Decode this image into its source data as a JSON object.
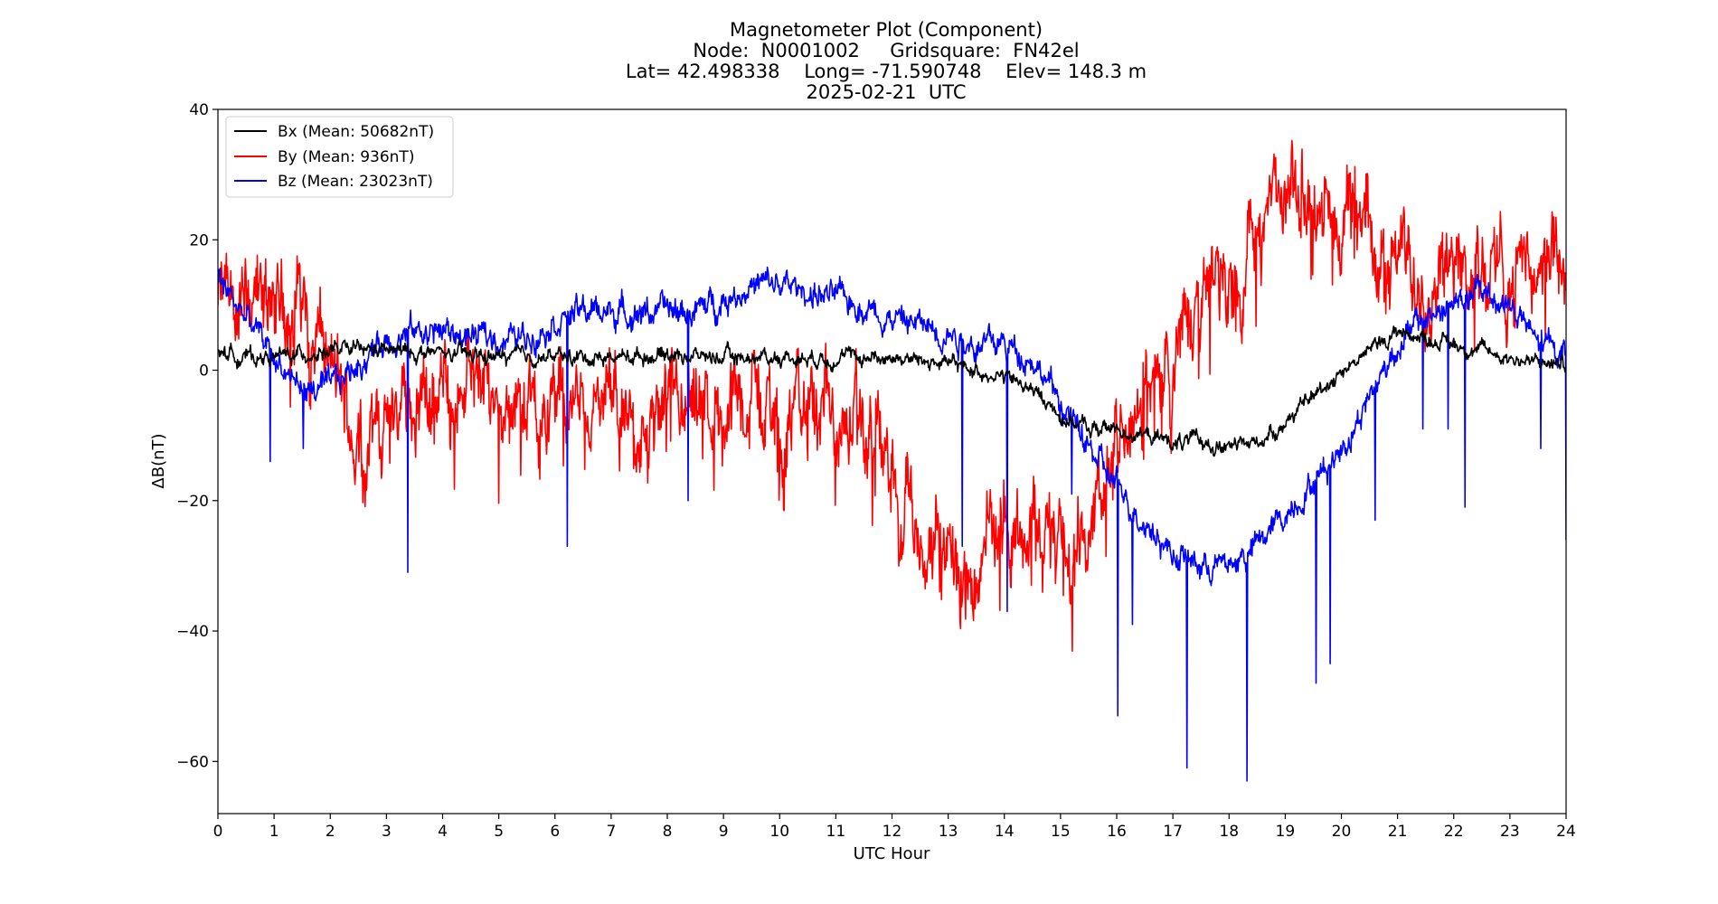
{
  "chart_data": {
    "type": "line",
    "title_lines": [
      "Magnetometer Plot (Component)",
      "Node:  N0001002     Gridsquare:  FN42el",
      "Lat= 42.498338    Long= -71.590748    Elev= 148.3 m",
      "2025-02-21  UTC"
    ],
    "xlabel": "UTC Hour",
    "ylabel": "ΔB(nT)",
    "xlim": [
      0,
      24
    ],
    "ylim": [
      -68,
      40
    ],
    "xticks": [
      0,
      1,
      2,
      3,
      4,
      5,
      6,
      7,
      8,
      9,
      10,
      11,
      12,
      13,
      14,
      15,
      16,
      17,
      18,
      19,
      20,
      21,
      22,
      23,
      24
    ],
    "yticks": [
      40,
      20,
      0,
      -20,
      -40,
      -60
    ],
    "ytick_labels": [
      "40",
      "20",
      "0",
      "−20",
      "−40",
      "−60"
    ],
    "grid": false,
    "legend_position": "upper-left",
    "series": [
      {
        "name": "Bx (Mean: 50682nT)",
        "color": "#000000",
        "amplitude": 1.2,
        "x": [
          0,
          0.5,
          1,
          1.5,
          2,
          3,
          4,
          5,
          6,
          7,
          8,
          9,
          10,
          11,
          12,
          12.5,
          13,
          13.5,
          14,
          14.5,
          15,
          15.5,
          16,
          16.5,
          17,
          17.5,
          18,
          18.5,
          19,
          19.5,
          20,
          20.5,
          21,
          21.5,
          22,
          22.5,
          23,
          23.5,
          24
        ],
        "y": [
          3,
          2,
          2,
          2.5,
          3,
          3,
          2.5,
          2,
          2,
          2,
          2.5,
          2,
          2,
          2,
          2,
          1.5,
          1,
          0,
          -1,
          -3,
          -7,
          -9,
          -9,
          -10,
          -11,
          -11,
          -12,
          -11,
          -8,
          -4,
          0,
          3,
          6,
          5,
          4,
          3,
          2,
          1,
          1
        ],
        "spikes": []
      },
      {
        "name": "By (Mean: 936nT)",
        "color": "#ff0000",
        "amplitude": 7,
        "x": [
          0,
          0.5,
          1,
          1.5,
          2,
          2.5,
          3,
          3.5,
          4,
          4.5,
          5,
          5.5,
          6,
          6.5,
          7,
          7.5,
          8,
          8.5,
          9,
          9.5,
          10,
          10.5,
          11,
          11.5,
          12,
          12.5,
          13,
          13.5,
          14,
          14.5,
          15,
          15.5,
          16,
          16.5,
          17,
          17.5,
          18,
          18.5,
          19,
          19.5,
          20,
          20.5,
          21,
          21.5,
          22,
          22.5,
          23,
          23.5,
          24
        ],
        "y": [
          10,
          10,
          10,
          12,
          0,
          -12,
          -8,
          -3,
          -3,
          -3,
          -3,
          -5,
          -5,
          -5,
          -6,
          -8,
          -8,
          -10,
          -6,
          -4,
          -6,
          -8,
          -8,
          -10,
          -15,
          -24,
          -30,
          -28,
          -22,
          -25,
          -28,
          -25,
          -12,
          -2,
          2,
          10,
          15,
          22,
          25,
          25,
          25,
          22,
          18,
          16,
          16,
          15,
          15,
          15,
          15
        ],
        "spikes": []
      },
      {
        "name": "Bz (Mean: 23023nT)",
        "color": "#0000ff",
        "amplitude": 2.2,
        "x": [
          0,
          0.5,
          1,
          1.5,
          2,
          2.5,
          3,
          3.5,
          4,
          4.5,
          5,
          5.5,
          6,
          6.5,
          7,
          7.5,
          8,
          8.5,
          9,
          9.5,
          10,
          10.5,
          11,
          11.5,
          12,
          12.5,
          13,
          13.5,
          14,
          14.5,
          15,
          15.5,
          16,
          16.5,
          17,
          17.5,
          18,
          18.5,
          19,
          19.5,
          20,
          20.5,
          21,
          21.5,
          22,
          22.5,
          23,
          23.5,
          24
        ],
        "y": [
          14,
          8,
          2,
          -3,
          -3,
          1,
          5,
          6,
          6,
          5,
          5,
          5,
          8,
          9,
          9,
          9,
          9,
          9,
          11,
          13,
          13,
          12,
          11,
          10,
          8,
          7,
          6,
          4,
          4,
          2,
          -5,
          -12,
          -18,
          -23,
          -28,
          -30,
          -30,
          -27,
          -22,
          -17,
          -12,
          -4,
          4,
          8,
          10,
          12,
          10,
          4,
          3
        ],
        "spikes": [
          {
            "x": 0.93,
            "y": -14
          },
          {
            "x": 1.52,
            "y": -12
          },
          {
            "x": 3.38,
            "y": -31
          },
          {
            "x": 6.22,
            "y": -27
          },
          {
            "x": 8.37,
            "y": -20
          },
          {
            "x": 13.25,
            "y": -27
          },
          {
            "x": 14.05,
            "y": -37
          },
          {
            "x": 15.2,
            "y": -19
          },
          {
            "x": 16.02,
            "y": -53
          },
          {
            "x": 16.28,
            "y": -39
          },
          {
            "x": 17.25,
            "y": -61
          },
          {
            "x": 18.32,
            "y": -63
          },
          {
            "x": 19.55,
            "y": -48
          },
          {
            "x": 19.8,
            "y": -45
          },
          {
            "x": 20.6,
            "y": -23
          },
          {
            "x": 21.45,
            "y": -9
          },
          {
            "x": 21.9,
            "y": -9
          },
          {
            "x": 22.2,
            "y": -21
          },
          {
            "x": 23.55,
            "y": -12
          },
          {
            "x": 24,
            "y": -26
          }
        ]
      }
    ]
  }
}
